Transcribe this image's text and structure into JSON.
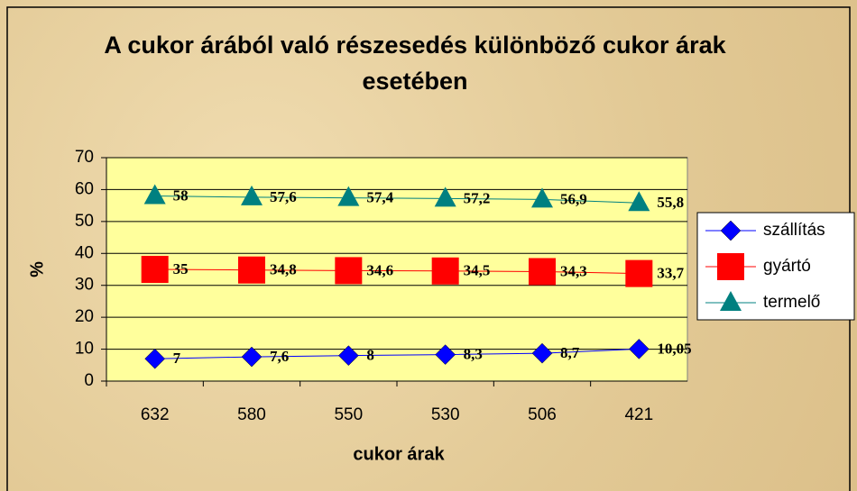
{
  "chart_data": {
    "type": "line",
    "title": "A cukor árából való részesedés különböző cukor árak esetében",
    "xlabel": "cukor árak",
    "ylabel": "%",
    "categories": [
      "632",
      "580",
      "550",
      "530",
      "506",
      "421"
    ],
    "ylim": [
      0,
      70
    ],
    "yticks": [
      0,
      10,
      20,
      30,
      40,
      50,
      60,
      70
    ],
    "grid": true,
    "series": [
      {
        "name": "szállítás",
        "color": "#0000ff",
        "marker": "diamond",
        "values": [
          7,
          7.6,
          8,
          8.3,
          8.7,
          10.05
        ],
        "value_labels": [
          "7",
          "7,6",
          "8",
          "8,3",
          "8,7",
          "10,05"
        ]
      },
      {
        "name": "gyártó",
        "color": "#ff0000",
        "marker": "square",
        "values": [
          35,
          34.8,
          34.6,
          34.5,
          34.3,
          33.7
        ],
        "value_labels": [
          "35",
          "34,8",
          "34,6",
          "34,5",
          "34,3",
          "33,7"
        ]
      },
      {
        "name": "termelő",
        "color": "#008080",
        "marker": "triangle",
        "values": [
          58,
          57.6,
          57.4,
          57.2,
          56.9,
          55.8
        ],
        "value_labels": [
          "58",
          "57,6",
          "57,4",
          "57,2",
          "56,9",
          "55,8"
        ]
      }
    ]
  }
}
